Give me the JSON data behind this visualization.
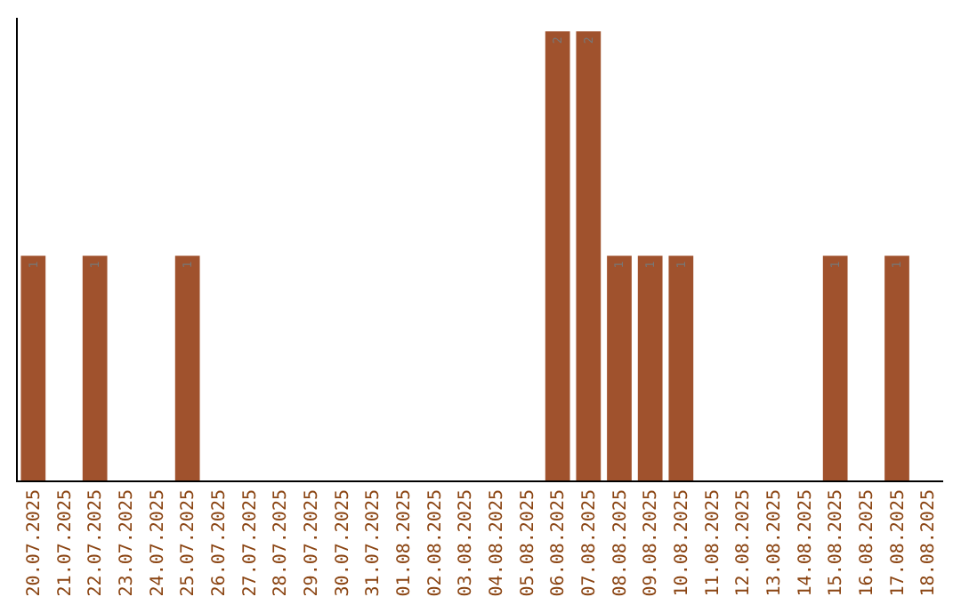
{
  "chart_data": {
    "type": "bar",
    "categories": [
      "20.07.2025",
      "21.07.2025",
      "22.07.2025",
      "23.07.2025",
      "24.07.2025",
      "25.07.2025",
      "26.07.2025",
      "27.07.2025",
      "28.07.2025",
      "29.07.2025",
      "30.07.2025",
      "31.07.2025",
      "01.08.2025",
      "02.08.2025",
      "03.08.2025",
      "04.08.2025",
      "05.08.2025",
      "06.08.2025",
      "07.08.2025",
      "08.08.2025",
      "09.08.2025",
      "10.08.2025",
      "11.08.2025",
      "12.08.2025",
      "13.08.2025",
      "14.08.2025",
      "15.08.2025",
      "16.08.2025",
      "17.08.2025",
      "18.08.2025"
    ],
    "values": [
      1,
      0,
      1,
      0,
      0,
      1,
      0,
      0,
      0,
      0,
      0,
      0,
      0,
      0,
      0,
      0,
      0,
      2,
      2,
      1,
      1,
      1,
      0,
      0,
      0,
      0,
      1,
      0,
      1,
      0
    ],
    "value_labels": [
      "1",
      null,
      "1",
      null,
      null,
      "1",
      null,
      null,
      null,
      null,
      null,
      null,
      null,
      null,
      null,
      null,
      null,
      "2",
      "2",
      "1",
      "1",
      "1",
      null,
      null,
      null,
      null,
      "1",
      null,
      "1",
      null
    ],
    "color": "#a0522d",
    "tick_labels": "x",
    "grid": false,
    "legend": false
  }
}
